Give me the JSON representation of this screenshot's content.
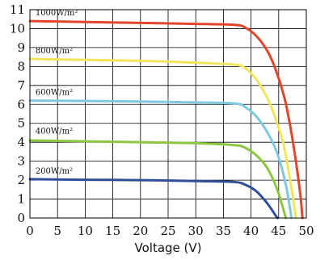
{
  "chart_data": {
    "type": "line",
    "title": "",
    "xlabel": "Voltage (V)",
    "ylabel": "",
    "xlim": [
      0,
      50
    ],
    "ylim": [
      0,
      11
    ],
    "xticks": [
      0,
      5,
      10,
      15,
      20,
      25,
      30,
      35,
      40,
      45,
      50
    ],
    "yticks": [
      0,
      1,
      2,
      3,
      4,
      5,
      6,
      7,
      8,
      9,
      10,
      11
    ],
    "grid": true,
    "series": [
      {
        "name": "1000W/m²",
        "color": "#e2462a",
        "points": [
          [
            0,
            10.4
          ],
          [
            10,
            10.35
          ],
          [
            20,
            10.3
          ],
          [
            30,
            10.25
          ],
          [
            37,
            10.2
          ],
          [
            39,
            10.05
          ],
          [
            41,
            9.6
          ],
          [
            43,
            8.8
          ],
          [
            44.5,
            7.8
          ],
          [
            46,
            6.4
          ],
          [
            47,
            5.0
          ],
          [
            47.8,
            3.6
          ],
          [
            48.5,
            2.2
          ],
          [
            49,
            1.0
          ],
          [
            49.3,
            0
          ]
        ]
      },
      {
        "name": "800W/m²",
        "color": "#f1e65a",
        "points": [
          [
            0,
            8.4
          ],
          [
            10,
            8.35
          ],
          [
            20,
            8.3
          ],
          [
            30,
            8.2
          ],
          [
            37,
            8.1
          ],
          [
            39,
            7.9
          ],
          [
            41,
            7.3
          ],
          [
            43,
            6.3
          ],
          [
            44.5,
            5.2
          ],
          [
            45.8,
            4.0
          ],
          [
            46.6,
            2.8
          ],
          [
            47.3,
            1.6
          ],
          [
            47.9,
            0.5
          ],
          [
            48.1,
            0
          ]
        ]
      },
      {
        "name": "600W/m²",
        "color": "#7ec8e0",
        "points": [
          [
            0,
            6.2
          ],
          [
            10,
            6.18
          ],
          [
            20,
            6.15
          ],
          [
            30,
            6.1
          ],
          [
            37,
            6.05
          ],
          [
            39,
            5.85
          ],
          [
            41,
            5.35
          ],
          [
            43,
            4.5
          ],
          [
            44.5,
            3.6
          ],
          [
            45.6,
            2.6
          ],
          [
            46.4,
            1.6
          ],
          [
            47,
            0.6
          ],
          [
            47.3,
            0
          ]
        ]
      },
      {
        "name": "400W/m²",
        "color": "#8dc63f",
        "points": [
          [
            0,
            4.1
          ],
          [
            10,
            4.05
          ],
          [
            20,
            4.0
          ],
          [
            30,
            3.95
          ],
          [
            37,
            3.85
          ],
          [
            39,
            3.7
          ],
          [
            41,
            3.3
          ],
          [
            42.8,
            2.7
          ],
          [
            44.2,
            1.9
          ],
          [
            45.2,
            1.1
          ],
          [
            46,
            0.3
          ],
          [
            46.3,
            0
          ]
        ]
      },
      {
        "name": "200W/m²",
        "color": "#2f4f99",
        "points": [
          [
            0,
            2.05
          ],
          [
            10,
            2.02
          ],
          [
            20,
            2.0
          ],
          [
            30,
            1.95
          ],
          [
            37,
            1.9
          ],
          [
            39,
            1.75
          ],
          [
            40.8,
            1.45
          ],
          [
            42.3,
            1.0
          ],
          [
            43.5,
            0.55
          ],
          [
            44.4,
            0.15
          ],
          [
            44.8,
            0
          ]
        ]
      }
    ],
    "annotations": [
      {
        "text": "1000W/m²",
        "x": 1,
        "y": 10.7
      },
      {
        "text": "800W/m²",
        "x": 1,
        "y": 8.7
      },
      {
        "text": "600W/m²",
        "x": 1,
        "y": 6.5
      },
      {
        "text": "400W/m²",
        "x": 1,
        "y": 4.45
      },
      {
        "text": "200W/m²",
        "x": 1,
        "y": 2.35
      }
    ]
  }
}
